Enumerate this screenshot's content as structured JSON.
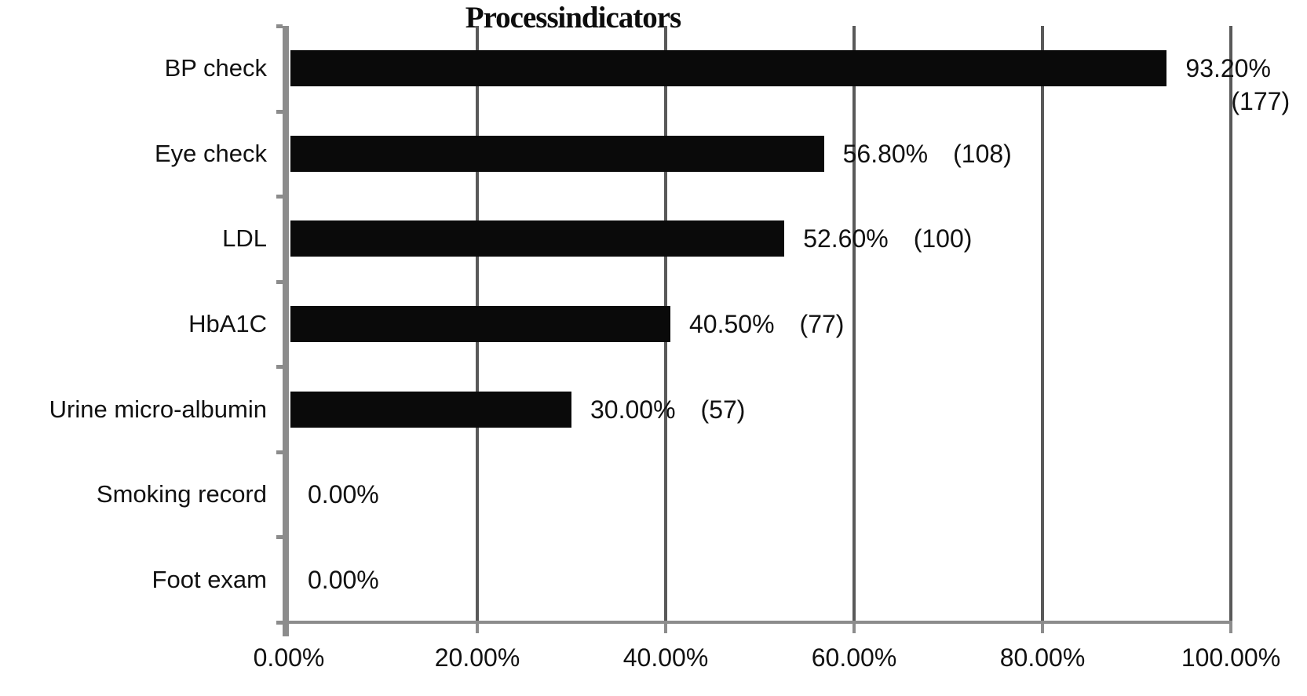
{
  "chart_data": {
    "type": "bar",
    "orientation": "horizontal",
    "title": "Process indicators",
    "categories": [
      "BP check",
      "Eye check",
      "LDL",
      "HbA1C",
      "Urine micro-albumin",
      "Smoking record",
      "Foot exam"
    ],
    "values": [
      93.2,
      56.8,
      52.6,
      40.5,
      30.0,
      0.0,
      0.0
    ],
    "value_labels": [
      "93.20%",
      "56.80%",
      "52.60%",
      "40.50%",
      "30.00%",
      "0.00%",
      "0.00%"
    ],
    "count_labels": [
      "(177)",
      "(108)",
      "(100)",
      "(77)",
      "(57)",
      "",
      ""
    ],
    "count_label_layout": [
      "below-right",
      "inline",
      "inline",
      "inline",
      "inline",
      "none",
      "none"
    ],
    "x_ticks": [
      "0.00%",
      "20.00%",
      "40.00%",
      "60.00%",
      "80.00%",
      "100.00%"
    ],
    "x_tick_values": [
      0,
      20,
      40,
      60,
      80,
      100
    ],
    "xlim": [
      0,
      100
    ],
    "xlabel": "",
    "ylabel": "",
    "grid": true,
    "legend": "none",
    "bar_color": "#0a0a0a",
    "grid_color": "#595959",
    "axis_color": "#8c8c8c",
    "text_color": "#111111",
    "background_color": "#ffffff"
  }
}
